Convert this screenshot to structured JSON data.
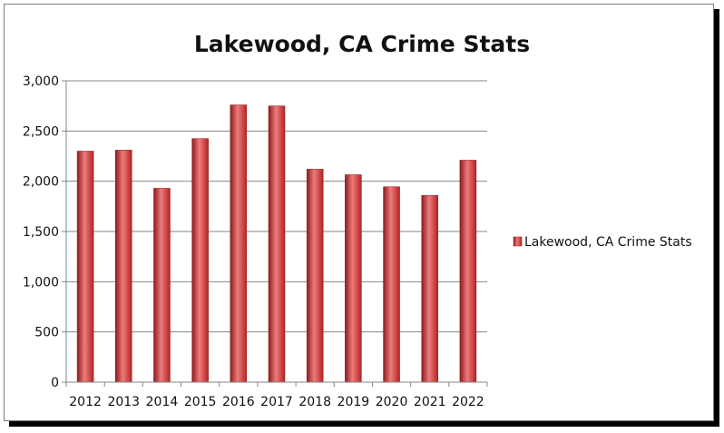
{
  "chart_data": {
    "type": "bar",
    "title": "Lakewood, CA Crime Stats",
    "xlabel": "",
    "ylabel": "",
    "categories": [
      "2012",
      "2013",
      "2014",
      "2015",
      "2016",
      "2017",
      "2018",
      "2019",
      "2020",
      "2021",
      "2022"
    ],
    "series": [
      {
        "name": "Lakewood, CA Crime Stats",
        "values": [
          2300,
          2310,
          1930,
          2425,
          2760,
          2750,
          2120,
          2065,
          1945,
          1860,
          2210
        ]
      }
    ],
    "ylim": [
      0,
      3000
    ],
    "yticks": [
      0,
      500,
      1000,
      1500,
      2000,
      2500,
      3000
    ],
    "ytick_labels": [
      "0",
      "500",
      "1,000",
      "1,500",
      "2,000",
      "2,500",
      "3,000"
    ],
    "grid": true,
    "legend_position": "right",
    "colors": {
      "bar_dark": "#8e1a1a",
      "bar_mid": "#d43a3a",
      "bar_light": "#ee7b7b",
      "grid": "#868686",
      "frame_shadow": "#000000"
    }
  }
}
